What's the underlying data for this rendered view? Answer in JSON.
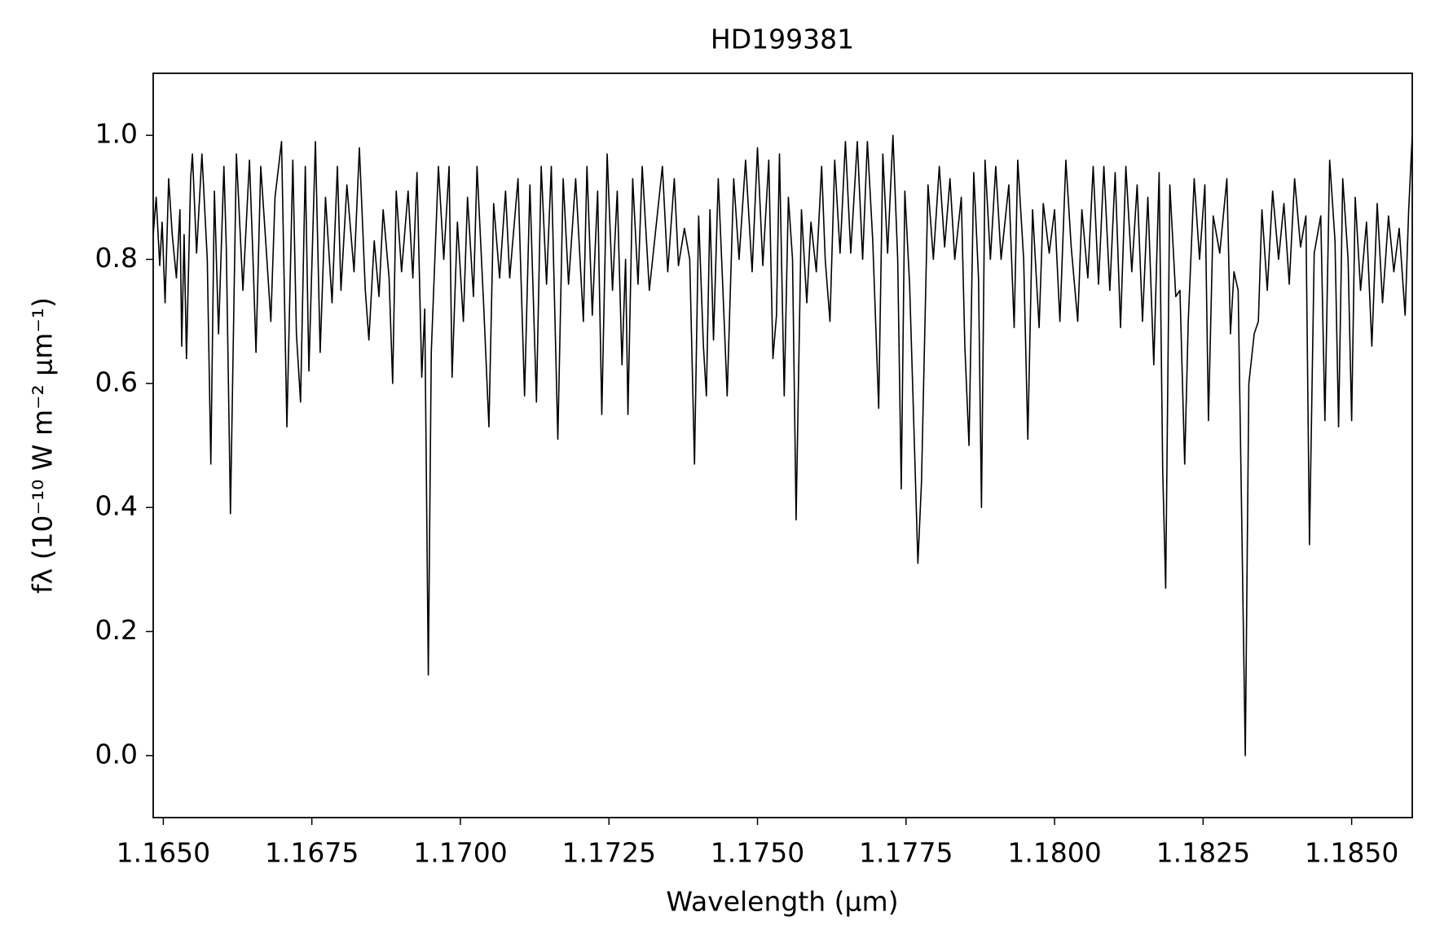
{
  "chart_data": {
    "type": "line",
    "title": "HD199381",
    "xlabel": "Wavelength (μm)",
    "ylabel": "fλ (10⁻¹⁰ W m⁻² μm⁻¹)",
    "xlim": [
      1.16483,
      1.18602
    ],
    "ylim": [
      -0.1,
      1.1
    ],
    "xticks": [
      {
        "value": 1.165,
        "label": "1.1650"
      },
      {
        "value": 1.1675,
        "label": "1.1675"
      },
      {
        "value": 1.17,
        "label": "1.1700"
      },
      {
        "value": 1.1725,
        "label": "1.1725"
      },
      {
        "value": 1.175,
        "label": "1.1750"
      },
      {
        "value": 1.1775,
        "label": "1.1775"
      },
      {
        "value": 1.18,
        "label": "1.1800"
      },
      {
        "value": 1.1825,
        "label": "1.1825"
      },
      {
        "value": 1.185,
        "label": "1.1850"
      }
    ],
    "yticks": [
      {
        "value": 0,
        "label": "0.0"
      },
      0.2,
      0.4,
      0.6,
      0.8,
      {
        "value": 1,
        "label": "1.0"
      }
    ],
    "color": "#000000",
    "grid": false,
    "x": [
      1.16483,
      1.16488,
      1.16494,
      1.16498,
      1.16503,
      1.16509,
      1.16515,
      1.16522,
      1.16528,
      1.16531,
      1.16535,
      1.16539,
      1.16546,
      1.16549,
      1.16556,
      1.16565,
      1.16574,
      1.1658,
      1.16586,
      1.16593,
      1.16602,
      1.16606,
      1.16613,
      1.16623,
      1.16634,
      1.16645,
      1.16651,
      1.16656,
      1.16664,
      1.16673,
      1.16681,
      1.16688,
      1.16699,
      1.16708,
      1.16718,
      1.16724,
      1.16731,
      1.16739,
      1.16745,
      1.16756,
      1.16764,
      1.16773,
      1.16784,
      1.16793,
      1.16799,
      1.16809,
      1.16821,
      1.1683,
      1.1684,
      1.16846,
      1.16855,
      1.16863,
      1.1687,
      1.1688,
      1.16886,
      1.16892,
      1.16901,
      1.16912,
      1.1692,
      1.16927,
      1.16935,
      1.1694,
      1.16946,
      1.16951,
      1.16963,
      1.16972,
      1.16981,
      1.16986,
      1.16995,
      1.17005,
      1.17012,
      1.17022,
      1.17028,
      1.17039,
      1.17048,
      1.17056,
      1.17066,
      1.17076,
      1.17083,
      1.17097,
      1.17108,
      1.17117,
      1.17128,
      1.17136,
      1.17145,
      1.17153,
      1.17164,
      1.17173,
      1.17182,
      1.17194,
      1.17207,
      1.17213,
      1.17222,
      1.17231,
      1.17238,
      1.17247,
      1.17256,
      1.17264,
      1.17272,
      1.17278,
      1.17282,
      1.1729,
      1.17299,
      1.17306,
      1.17318,
      1.17329,
      1.1734,
      1.17349,
      1.1736,
      1.17367,
      1.17377,
      1.17386,
      1.17394,
      1.17401,
      1.17409,
      1.17414,
      1.1742,
      1.17426,
      1.17434,
      1.17441,
      1.17449,
      1.1746,
      1.17469,
      1.1748,
      1.17491,
      1.175,
      1.17509,
      1.17519,
      1.17526,
      1.17532,
      1.17537,
      1.17545,
      1.17552,
      1.17559,
      1.17565,
      1.17574,
      1.17583,
      1.1759,
      1.17599,
      1.17608,
      1.17614,
      1.17622,
      1.1763,
      1.17639,
      1.17648,
      1.17657,
      1.17668,
      1.17677,
      1.17685,
      1.17694,
      1.17704,
      1.17711,
      1.17719,
      1.17728,
      1.17736,
      1.17742,
      1.17748,
      1.17756,
      1.17762,
      1.1777,
      1.17776,
      1.17787,
      1.17796,
      1.17806,
      1.17815,
      1.17824,
      1.17832,
      1.17843,
      1.17849,
      1.17856,
      1.17864,
      1.17872,
      1.17877,
      1.17883,
      1.17892,
      1.17901,
      1.1791,
      1.17923,
      1.17932,
      1.17938,
      1.17948,
      1.17955,
      1.17963,
      1.17974,
      1.17981,
      1.17991,
      1.18,
      1.18009,
      1.18019,
      1.18028,
      1.18039,
      1.18046,
      1.18056,
      1.18065,
      1.18074,
      1.18083,
      1.18093,
      1.18102,
      1.18111,
      1.1812,
      1.1813,
      1.18139,
      1.18148,
      1.18157,
      1.18167,
      1.18176,
      1.18182,
      1.18187,
      1.18194,
      1.18204,
      1.18211,
      1.18219,
      1.18225,
      1.18235,
      1.18244,
      1.18253,
      1.18259,
      1.18267,
      1.18278,
      1.1829,
      1.18296,
      1.18302,
      1.18309,
      1.18315,
      1.18321,
      1.18327,
      1.18336,
      1.18343,
      1.18349,
      1.18358,
      1.18367,
      1.18377,
      1.18386,
      1.18395,
      1.18404,
      1.18414,
      1.18423,
      1.18429,
      1.18437,
      1.18448,
      1.18455,
      1.18463,
      1.18472,
      1.18478,
      1.18485,
      1.18494,
      1.185,
      1.18506,
      1.18515,
      1.18525,
      1.18534,
      1.18543,
      1.18552,
      1.18562,
      1.18571,
      1.1858,
      1.1859,
      1.18596,
      1.18602
    ],
    "values": [
      0.84,
      0.9,
      0.79,
      0.86,
      0.73,
      0.93,
      0.84,
      0.77,
      0.88,
      0.66,
      0.84,
      0.64,
      0.93,
      0.97,
      0.81,
      0.97,
      0.8,
      0.47,
      0.91,
      0.68,
      0.95,
      0.82,
      0.39,
      0.97,
      0.75,
      0.96,
      0.8,
      0.65,
      0.95,
      0.82,
      0.7,
      0.9,
      0.99,
      0.53,
      0.96,
      0.68,
      0.57,
      0.95,
      0.62,
      0.99,
      0.65,
      0.9,
      0.73,
      0.95,
      0.75,
      0.92,
      0.78,
      0.98,
      0.75,
      0.67,
      0.83,
      0.74,
      0.88,
      0.77,
      0.6,
      0.91,
      0.78,
      0.91,
      0.77,
      0.94,
      0.61,
      0.72,
      0.13,
      0.65,
      0.95,
      0.8,
      0.95,
      0.61,
      0.86,
      0.7,
      0.9,
      0.74,
      0.95,
      0.73,
      0.53,
      0.89,
      0.77,
      0.91,
      0.77,
      0.93,
      0.58,
      0.92,
      0.57,
      0.95,
      0.76,
      0.95,
      0.51,
      0.93,
      0.76,
      0.93,
      0.7,
      0.95,
      0.71,
      0.91,
      0.55,
      0.97,
      0.75,
      0.91,
      0.63,
      0.8,
      0.55,
      0.93,
      0.76,
      0.95,
      0.75,
      0.85,
      0.95,
      0.78,
      0.93,
      0.79,
      0.85,
      0.8,
      0.47,
      0.87,
      0.66,
      0.58,
      0.88,
      0.67,
      0.93,
      0.77,
      0.58,
      0.93,
      0.8,
      0.96,
      0.78,
      0.98,
      0.79,
      0.96,
      0.64,
      0.71,
      0.97,
      0.58,
      0.9,
      0.8,
      0.38,
      0.88,
      0.73,
      0.86,
      0.78,
      0.95,
      0.8,
      0.7,
      0.96,
      0.81,
      0.99,
      0.81,
      0.99,
      0.8,
      0.99,
      0.83,
      0.56,
      0.97,
      0.81,
      1.0,
      0.8,
      0.43,
      0.91,
      0.76,
      0.57,
      0.31,
      0.44,
      0.92,
      0.8,
      0.95,
      0.82,
      0.93,
      0.8,
      0.9,
      0.66,
      0.5,
      0.94,
      0.77,
      0.4,
      0.96,
      0.8,
      0.95,
      0.8,
      0.92,
      0.69,
      0.96,
      0.8,
      0.51,
      0.88,
      0.69,
      0.89,
      0.81,
      0.88,
      0.7,
      0.96,
      0.82,
      0.7,
      0.88,
      0.77,
      0.95,
      0.76,
      0.95,
      0.75,
      0.94,
      0.69,
      0.95,
      0.78,
      0.92,
      0.7,
      0.9,
      0.63,
      0.94,
      0.46,
      0.27,
      0.92,
      0.74,
      0.75,
      0.47,
      0.7,
      0.93,
      0.8,
      0.92,
      0.54,
      0.87,
      0.81,
      0.93,
      0.68,
      0.78,
      0.75,
      0.38,
      0.0,
      0.6,
      0.68,
      0.7,
      0.88,
      0.75,
      0.91,
      0.8,
      0.89,
      0.76,
      0.93,
      0.82,
      0.87,
      0.34,
      0.81,
      0.87,
      0.54,
      0.96,
      0.83,
      0.53,
      0.93,
      0.8,
      0.54,
      0.9,
      0.75,
      0.86,
      0.66,
      0.89,
      0.73,
      0.87,
      0.78,
      0.85,
      0.71,
      0.88,
      1.0
    ]
  }
}
